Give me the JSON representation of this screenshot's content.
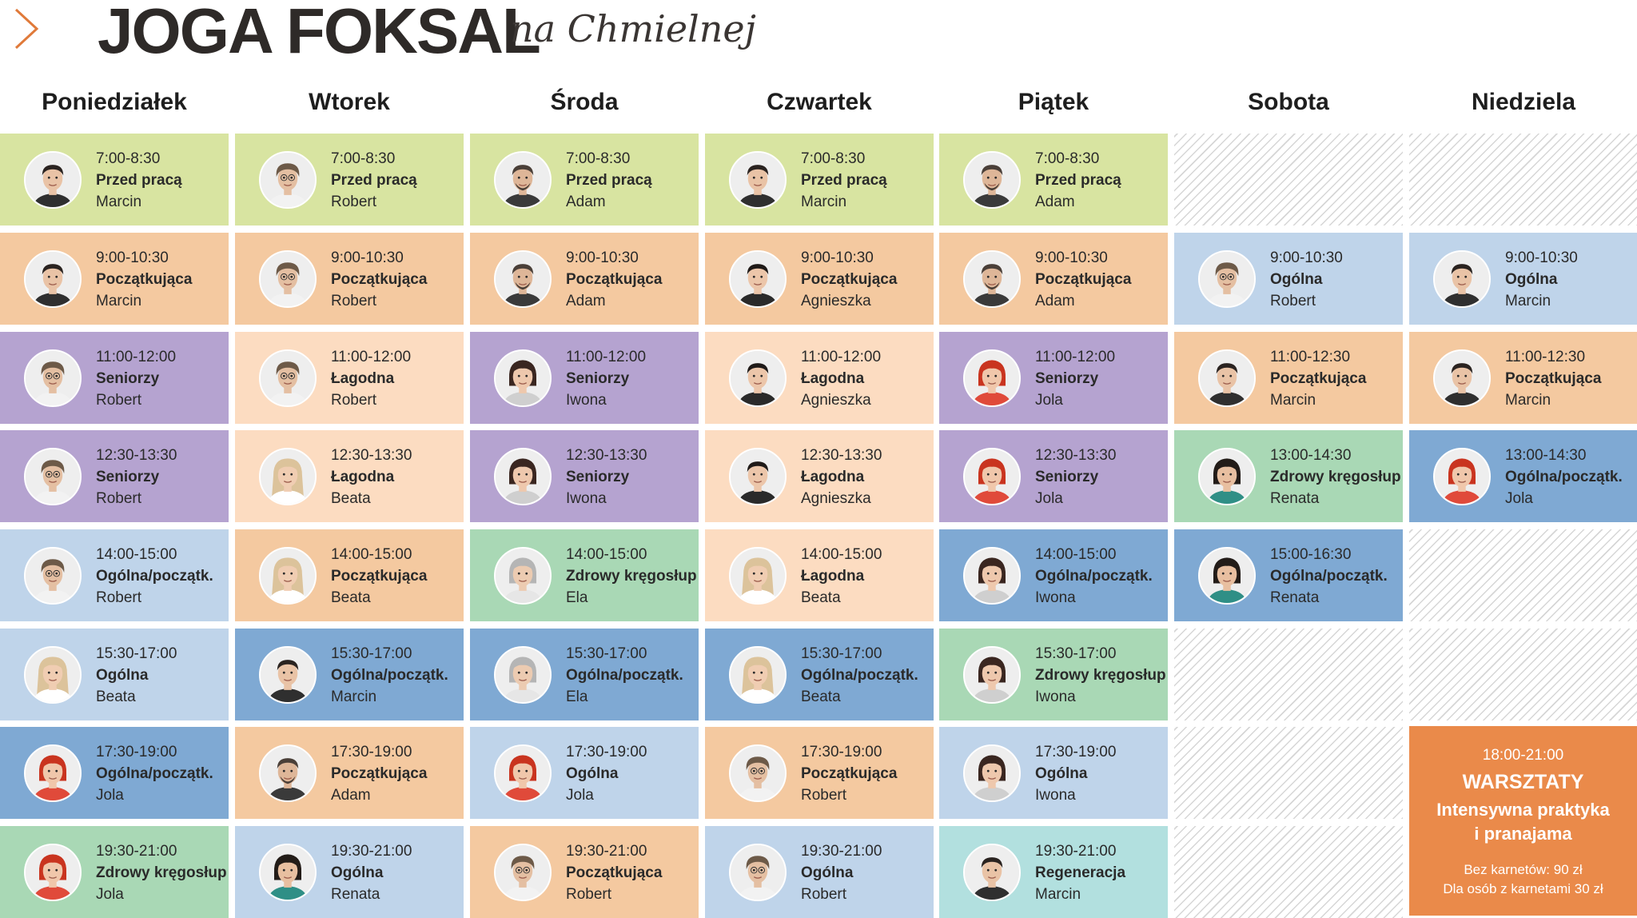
{
  "header": {
    "logo": "JOGA FOKSAL",
    "subtitle": "na Chmielnej"
  },
  "days": [
    "Poniedziałek",
    "Wtorek",
    "Środa",
    "Czwartek",
    "Piątek",
    "Sobota",
    "Niedziela"
  ],
  "colors": {
    "green": "#d8e4a1",
    "peach": "#f4c9a0",
    "light_peach": "#fcdcc1",
    "lavender": "#b5a3d0",
    "light_blue": "#bfd4ea",
    "blue": "#7fa9d3",
    "mint": "#a9d8b5",
    "teal": "#b2e0df",
    "workshop": "#ea8a4a"
  },
  "schedule": [
    [
      {
        "time": "7:00-8:30",
        "cls": "Przed pracą",
        "teacher": "Marcin",
        "color": "green"
      },
      {
        "time": "9:00-10:30",
        "cls": "Początkująca",
        "teacher": "Marcin",
        "color": "peach"
      },
      {
        "time": "11:00-12:00",
        "cls": "Seniorzy",
        "teacher": "Robert",
        "color": "lavender"
      },
      {
        "time": "12:30-13:30",
        "cls": "Seniorzy",
        "teacher": "Robert",
        "color": "lavender"
      },
      {
        "time": "14:00-15:00",
        "cls": "Ogólna/początk.",
        "teacher": "Robert",
        "color": "light_blue"
      },
      {
        "time": "15:30-17:00",
        "cls": "Ogólna",
        "teacher": "Beata",
        "color": "light_blue"
      },
      {
        "time": "17:30-19:00",
        "cls": "Ogólna/początk.",
        "teacher": "Jola",
        "color": "blue"
      },
      {
        "time": "19:30-21:00",
        "cls": "Zdrowy kręgosłup",
        "teacher": "Jola",
        "color": "mint"
      }
    ],
    [
      {
        "time": "7:00-8:30",
        "cls": "Przed pracą",
        "teacher": "Robert",
        "color": "green"
      },
      {
        "time": "9:00-10:30",
        "cls": "Początkująca",
        "teacher": "Robert",
        "color": "peach"
      },
      {
        "time": "11:00-12:00",
        "cls": "Łagodna",
        "teacher": "Robert",
        "color": "light_peach"
      },
      {
        "time": "12:30-13:30",
        "cls": "Łagodna",
        "teacher": "Beata",
        "color": "light_peach"
      },
      {
        "time": "14:00-15:00",
        "cls": "Początkująca",
        "teacher": "Beata",
        "color": "peach"
      },
      {
        "time": "15:30-17:00",
        "cls": "Ogólna/początk.",
        "teacher": "Marcin",
        "color": "blue"
      },
      {
        "time": "17:30-19:00",
        "cls": "Początkująca",
        "teacher": "Adam",
        "color": "peach"
      },
      {
        "time": "19:30-21:00",
        "cls": "Ogólna",
        "teacher": "Renata",
        "color": "light_blue"
      }
    ],
    [
      {
        "time": "7:00-8:30",
        "cls": "Przed pracą",
        "teacher": "Adam",
        "color": "green"
      },
      {
        "time": "9:00-10:30",
        "cls": "Początkująca",
        "teacher": "Adam",
        "color": "peach"
      },
      {
        "time": "11:00-12:00",
        "cls": "Seniorzy",
        "teacher": "Iwona",
        "color": "lavender"
      },
      {
        "time": "12:30-13:30",
        "cls": "Seniorzy",
        "teacher": "Iwona",
        "color": "lavender"
      },
      {
        "time": "14:00-15:00",
        "cls": "Zdrowy kręgosłup",
        "teacher": "Ela",
        "color": "mint"
      },
      {
        "time": "15:30-17:00",
        "cls": "Ogólna/początk.",
        "teacher": "Ela",
        "color": "blue"
      },
      {
        "time": "17:30-19:00",
        "cls": "Ogólna",
        "teacher": "Jola",
        "color": "light_blue"
      },
      {
        "time": "19:30-21:00",
        "cls": "Początkująca",
        "teacher": "Robert",
        "color": "peach"
      }
    ],
    [
      {
        "time": "7:00-8:30",
        "cls": "Przed pracą",
        "teacher": "Marcin",
        "color": "green"
      },
      {
        "time": "9:00-10:30",
        "cls": "Początkująca",
        "teacher": "Agnieszka",
        "color": "peach"
      },
      {
        "time": "11:00-12:00",
        "cls": "Łagodna",
        "teacher": "Agnieszka",
        "color": "light_peach"
      },
      {
        "time": "12:30-13:30",
        "cls": "Łagodna",
        "teacher": "Agnieszka",
        "color": "light_peach"
      },
      {
        "time": "14:00-15:00",
        "cls": "Łagodna",
        "teacher": "Beata",
        "color": "light_peach"
      },
      {
        "time": "15:30-17:00",
        "cls": "Ogólna/początk.",
        "teacher": "Beata",
        "color": "blue"
      },
      {
        "time": "17:30-19:00",
        "cls": "Początkująca",
        "teacher": "Robert",
        "color": "peach"
      },
      {
        "time": "19:30-21:00",
        "cls": "Ogólna",
        "teacher": "Robert",
        "color": "light_blue"
      }
    ],
    [
      {
        "time": "7:00-8:30",
        "cls": "Przed pracą",
        "teacher": "Adam",
        "color": "green"
      },
      {
        "time": "9:00-10:30",
        "cls": "Początkująca",
        "teacher": "Adam",
        "color": "peach"
      },
      {
        "time": "11:00-12:00",
        "cls": "Seniorzy",
        "teacher": "Jola",
        "color": "lavender"
      },
      {
        "time": "12:30-13:30",
        "cls": "Seniorzy",
        "teacher": "Jola",
        "color": "lavender"
      },
      {
        "time": "14:00-15:00",
        "cls": "Ogólna/początk.",
        "teacher": "Iwona",
        "color": "blue"
      },
      {
        "time": "15:30-17:00",
        "cls": "Zdrowy kręgosłup",
        "teacher": "Iwona",
        "color": "mint"
      },
      {
        "time": "17:30-19:00",
        "cls": "Ogólna",
        "teacher": "Iwona",
        "color": "light_blue"
      },
      {
        "time": "19:30-21:00",
        "cls": "Regeneracja",
        "teacher": "Marcin",
        "color": "teal"
      }
    ],
    [
      null,
      {
        "time": "9:00-10:30",
        "cls": "Ogólna",
        "teacher": "Robert",
        "color": "light_blue"
      },
      {
        "time": "11:00-12:30",
        "cls": "Początkująca",
        "teacher": "Marcin",
        "color": "peach"
      },
      {
        "time": "13:00-14:30",
        "cls": "Zdrowy kręgosłup",
        "teacher": "Renata",
        "color": "mint"
      },
      {
        "time": "15:00-16:30",
        "cls": "Ogólna/początk.",
        "teacher": "Renata",
        "color": "blue"
      },
      null,
      null,
      null
    ],
    [
      null,
      {
        "time": "9:00-10:30",
        "cls": "Ogólna",
        "teacher": "Marcin",
        "color": "light_blue"
      },
      {
        "time": "11:00-12:30",
        "cls": "Początkująca",
        "teacher": "Marcin",
        "color": "peach"
      },
      {
        "time": "13:00-14:30",
        "cls": "Ogólna/początk.",
        "teacher": "Jola",
        "color": "blue"
      },
      null,
      null
    ]
  ],
  "teachers": {
    "Marcin": {
      "skin": "#e9c3a6",
      "hair": "#2a2320",
      "hair_style": "short",
      "shirt": "#2f2f2f"
    },
    "Robert": {
      "skin": "#e4bfa2",
      "hair": "#6d5a48",
      "hair_style": "curly",
      "shirt": "#f2f2f2",
      "glasses": true
    },
    "Adam": {
      "skin": "#deb698",
      "hair": "#4a3f38",
      "hair_style": "short",
      "shirt": "#3a3a3a",
      "beard": true
    },
    "Agnieszka": {
      "skin": "#ecc6aa",
      "hair": "#1f1a18",
      "hair_style": "short",
      "shirt": "#2a2a2a"
    },
    "Iwona": {
      "skin": "#eec8ad",
      "hair": "#3a2620",
      "hair_style": "bob",
      "shirt": "#cfcfcf"
    },
    "Jola": {
      "skin": "#f0c7ab",
      "hair": "#c9341f",
      "hair_style": "bob",
      "shirt": "#e04a3a"
    },
    "Beata": {
      "skin": "#f0cdb2",
      "hair": "#dcc39b",
      "hair_style": "long",
      "shirt": "#ffffff"
    },
    "Ela": {
      "skin": "#eccbb1",
      "hair": "#b5b5b5",
      "hair_style": "bob",
      "shirt": "#e6e6e6"
    },
    "Renata": {
      "skin": "#e8bfa0",
      "hair": "#231c18",
      "hair_style": "bob",
      "shirt": "#2f8f86"
    }
  },
  "workshop": {
    "time": "18:00-21:00",
    "title": "WARSZTATY",
    "subtitle_line1": "Intensywna praktyka",
    "subtitle_line2": "i pranajama",
    "price_line1": "Bez karnetów: 90 zł",
    "price_line2": "Dla osób z karnetami 30 zł"
  }
}
